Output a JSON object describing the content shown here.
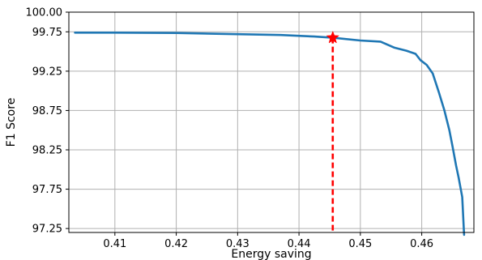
{
  "chart_data": {
    "type": "line",
    "title": "",
    "xlabel": "Energy saving",
    "ylabel": "F1 Score",
    "xlim": [
      0.4025,
      0.4685
    ],
    "ylim": [
      97.2,
      100.0
    ],
    "grid": true,
    "xticks": [
      0.41,
      0.42,
      0.43,
      0.44,
      0.45,
      0.46
    ],
    "xtick_labels": [
      "0.41",
      "0.42",
      "0.43",
      "0.44",
      "0.45",
      "0.46"
    ],
    "yticks": [
      97.25,
      97.75,
      98.25,
      98.75,
      99.25,
      99.75,
      100.0
    ],
    "ytick_labels": [
      "97.25",
      "97.75",
      "98.25",
      "98.75",
      "99.25",
      "99.75",
      "100.00"
    ],
    "series": [
      {
        "color": "#1f77b4",
        "x": [
          0.4035,
          0.41,
          0.42,
          0.43,
          0.437,
          0.4425,
          0.4455,
          0.45,
          0.4533,
          0.4555,
          0.4575,
          0.459,
          0.4598,
          0.4608,
          0.4618,
          0.4628,
          0.4637,
          0.4645,
          0.465,
          0.4656,
          0.466,
          0.4666,
          0.4669
        ],
        "y": [
          99.74,
          99.74,
          99.735,
          99.72,
          99.71,
          99.69,
          99.675,
          99.64,
          99.625,
          99.55,
          99.51,
          99.47,
          99.39,
          99.33,
          99.22,
          98.98,
          98.75,
          98.5,
          98.3,
          98.05,
          97.9,
          97.65,
          97.17
        ]
      }
    ],
    "marker": {
      "x": 0.4455,
      "y": 99.675,
      "color": "#ff0000",
      "shape": "star",
      "vline": true,
      "vline_style": "dashed"
    }
  }
}
